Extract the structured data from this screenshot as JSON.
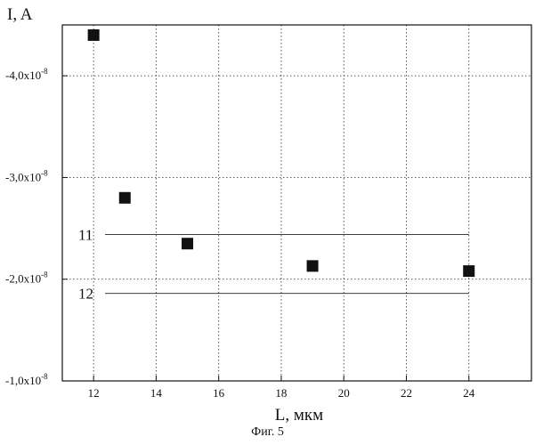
{
  "chart_data": {
    "type": "scatter",
    "ylabel": "I, A",
    "xlabel": "L, мкм",
    "x_ticks": [
      12,
      14,
      16,
      18,
      20,
      22,
      24
    ],
    "y_ticks": [
      {
        "value": -1e-08,
        "mant": "-1,0x10",
        "exp": "-8"
      },
      {
        "value": -2e-08,
        "mant": "-2,0x10",
        "exp": "-8"
      },
      {
        "value": -3e-08,
        "mant": "-3,0x10",
        "exp": "-8"
      },
      {
        "value": -4e-08,
        "mant": "-4,0x10",
        "exp": "-8"
      }
    ],
    "xlim": [
      11,
      26
    ],
    "ylim": [
      -1e-08,
      -4.5e-08
    ],
    "grid": true,
    "marker": "square",
    "marker_color": "#111111",
    "points": [
      {
        "x": 12,
        "y": -4.4e-08
      },
      {
        "x": 13,
        "y": -2.8e-08
      },
      {
        "x": 15,
        "y": -2.35e-08
      },
      {
        "x": 19,
        "y": -2.13e-08
      },
      {
        "x": 24,
        "y": -2.08e-08
      }
    ],
    "reference_lines": [
      {
        "label": "11",
        "y": -2.44e-08,
        "x_from": 11,
        "x_to": 24
      },
      {
        "label": "12",
        "y": -1.86e-08,
        "x_from": 11,
        "x_to": 24
      }
    ]
  },
  "caption": "Фиг. 5"
}
